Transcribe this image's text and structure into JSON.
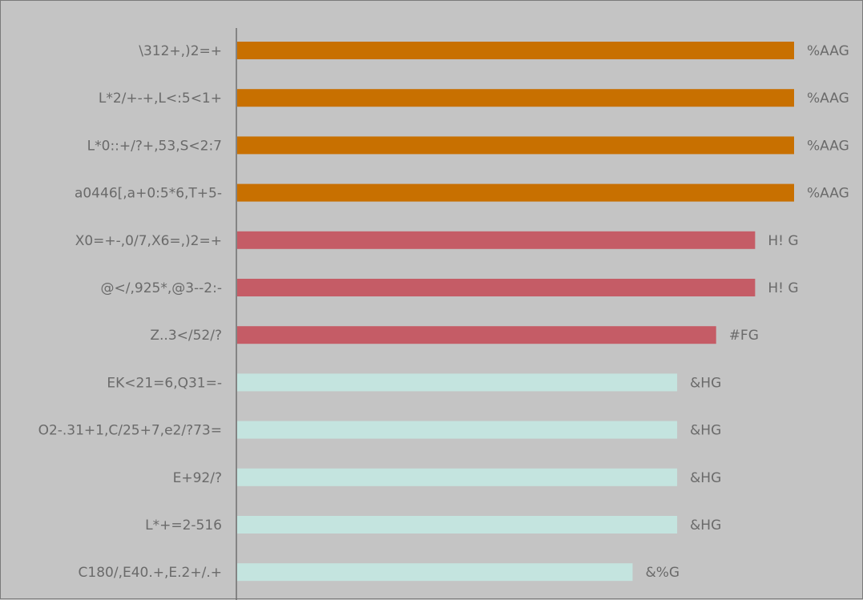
{
  "chart_data": {
    "type": "bar",
    "orientation": "horizontal",
    "title": "",
    "xlabel": "",
    "ylabel": "",
    "grid": false,
    "legend": "none",
    "xlim": [
      0,
      100
    ],
    "categories": [
      "\\312+,)2=+",
      "L*2/+-+,L<:5<1+",
      "L*0::+/?+,53,S<2:7",
      "a0446[,a+0:5*6,T+5-",
      "X0=+-,0/7,X6=,)2=+",
      "@</,925*,@3--2:-",
      "Z..3</52/?",
      "EK<21=6,Q31=-",
      "O2-.31+1,C/25+7,e2/?73=",
      "E+92/?",
      "L*+=2-516",
      "C180/,E40.+,E.2+/.+"
    ],
    "values": [
      100,
      100,
      100,
      100,
      93,
      93,
      86,
      79,
      79,
      79,
      79,
      71
    ],
    "value_labels": [
      "%AAG",
      "%AAG",
      "%AAG",
      "%AAG",
      "H! G",
      "H! G",
      "#FG",
      "&HG",
      "&HG",
      "&HG",
      "&HG",
      "&%G"
    ],
    "colors": [
      "#c87000",
      "#c87000",
      "#c87000",
      "#c87000",
      "#c55c66",
      "#c55c66",
      "#c55c66",
      "#c4e4df",
      "#c4e4df",
      "#c4e4df",
      "#c4e4df",
      "#c4e4df"
    ]
  },
  "colors": {
    "background": "#c4c4c4",
    "border": "#7a7a7a",
    "axis": "#6e6e6e",
    "text": "#6a6a6a"
  }
}
